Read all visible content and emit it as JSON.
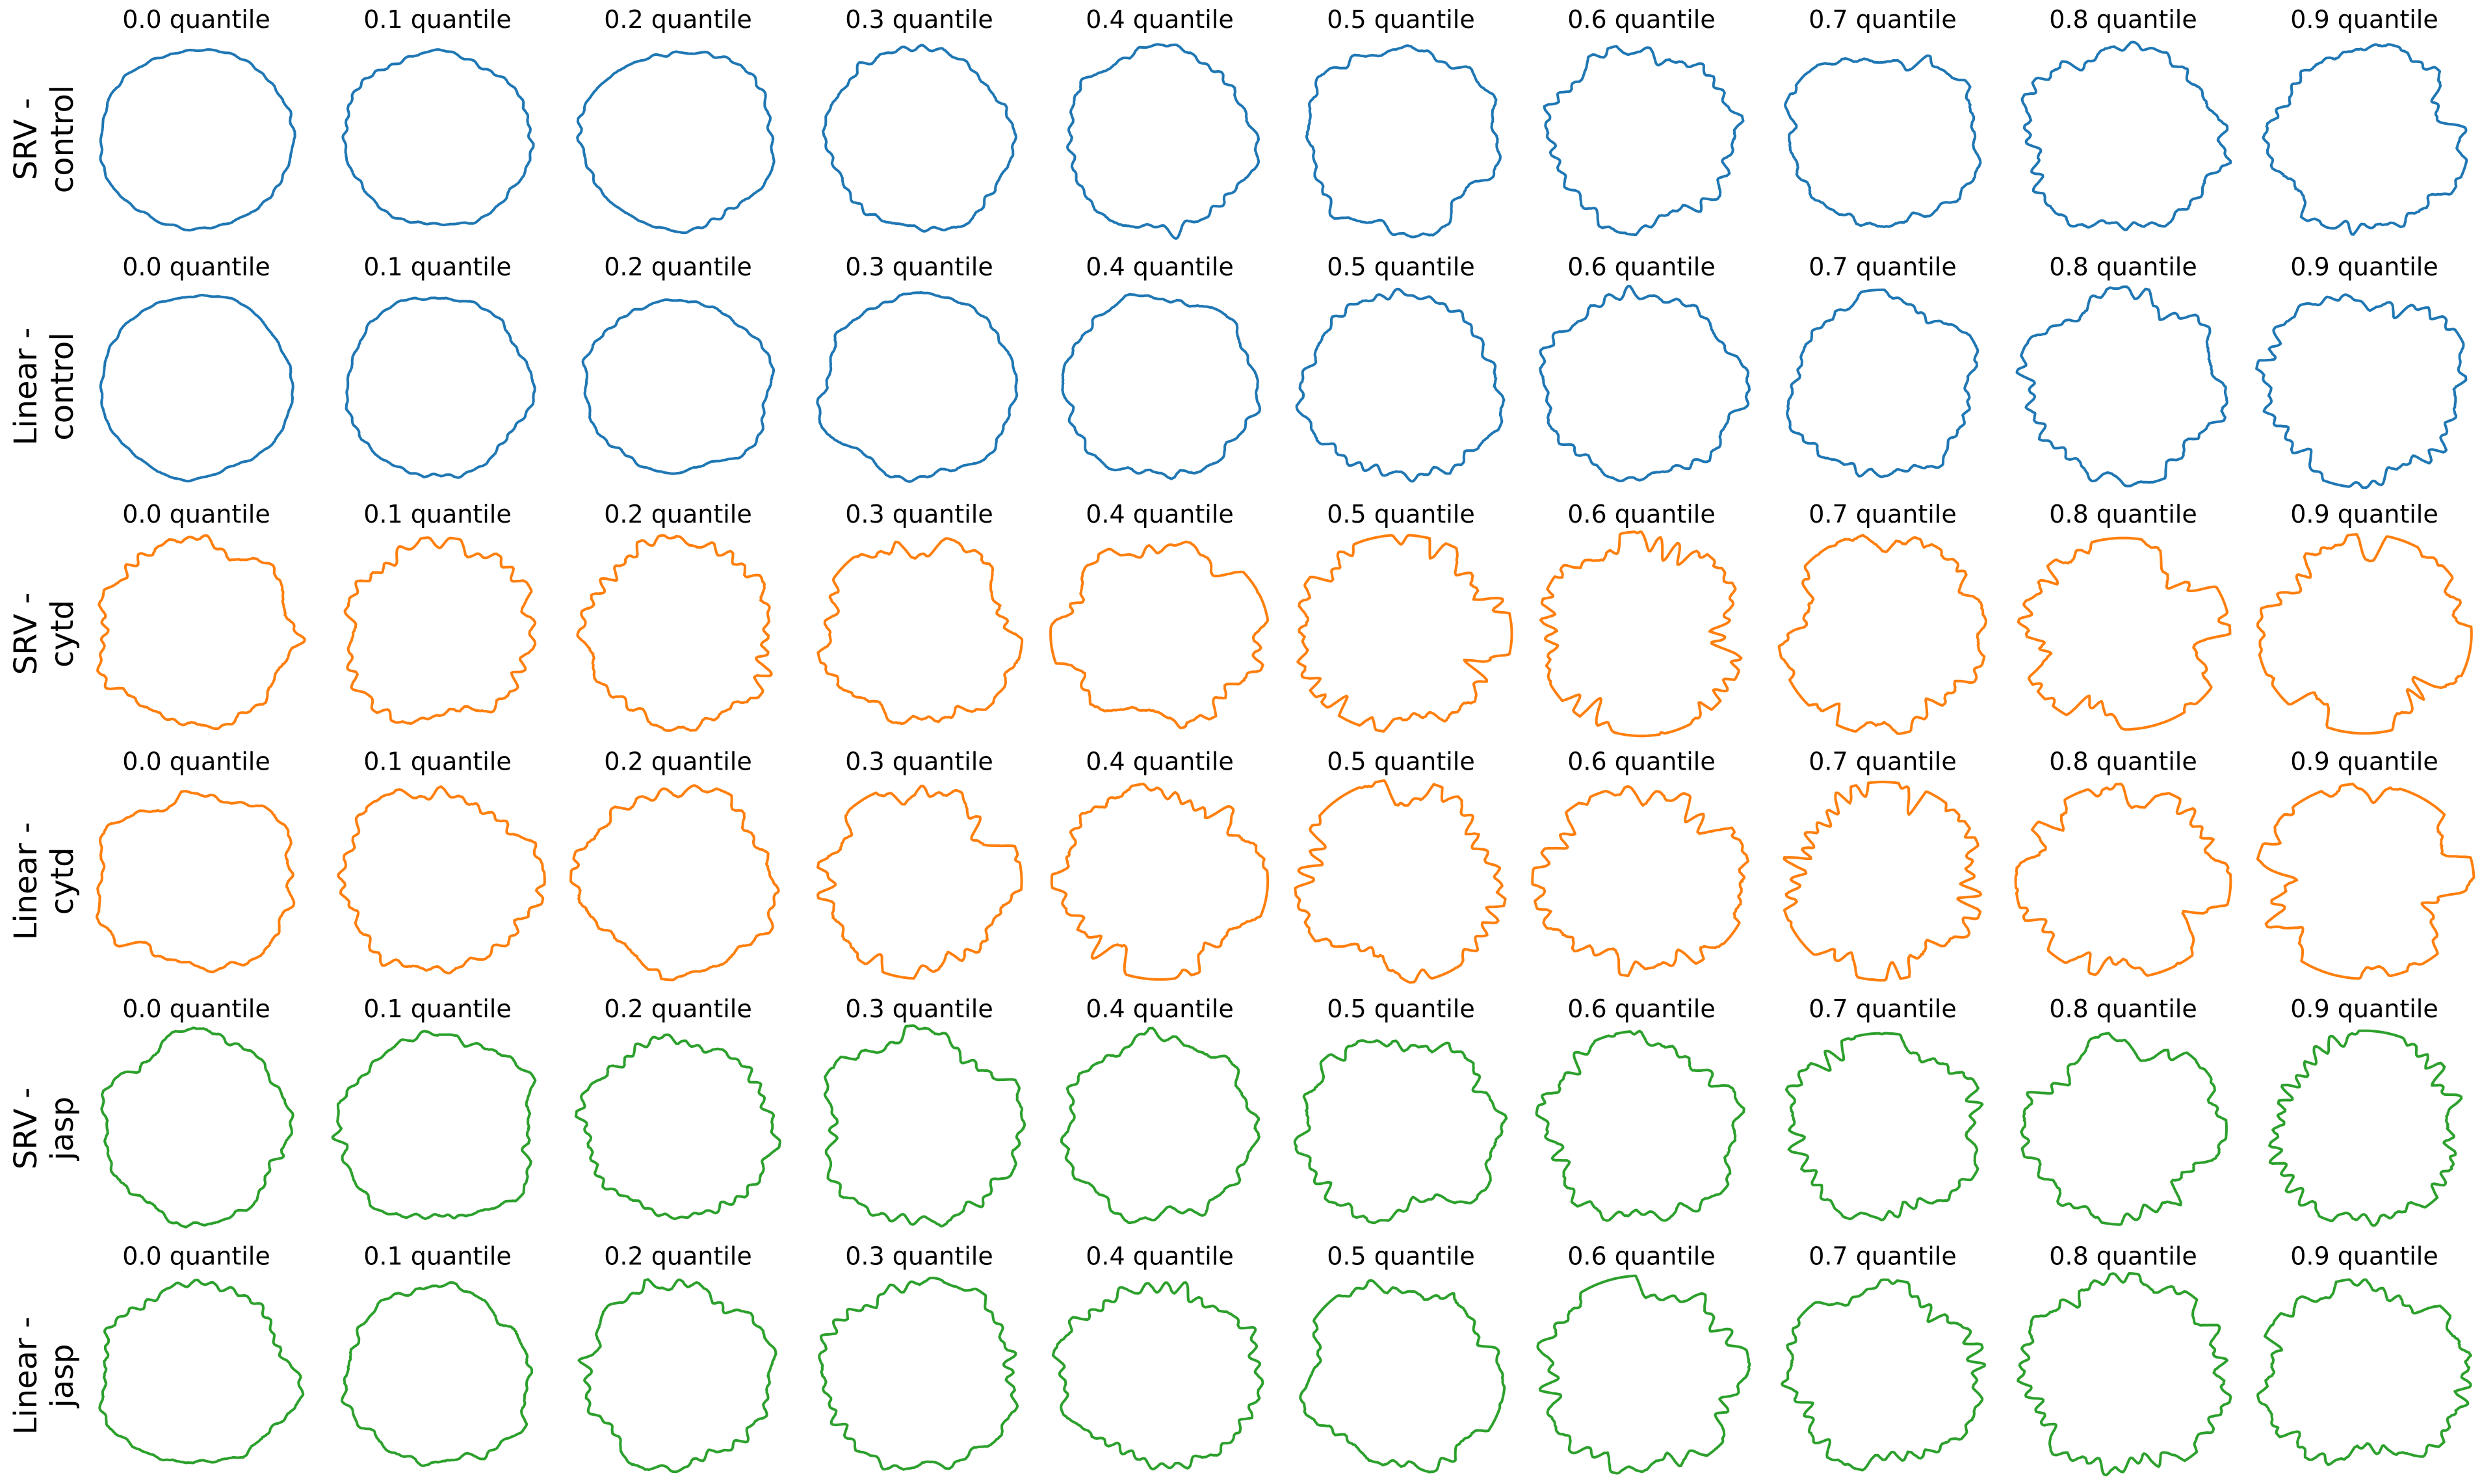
{
  "figure": {
    "columns": [
      "0.0 quantile",
      "0.1 quantile",
      "0.2 quantile",
      "0.3 quantile",
      "0.4 quantile",
      "0.5 quantile",
      "0.6 quantile",
      "0.7 quantile",
      "0.8 quantile",
      "0.9 quantile"
    ],
    "rows": [
      {
        "label_line1": "SRV -",
        "label_line2": "control",
        "color": "#1f77b4"
      },
      {
        "label_line1": "Linear -",
        "label_line2": "control",
        "color": "#1f77b4"
      },
      {
        "label_line1": "SRV -",
        "label_line2": "cytd",
        "color": "#ff7f0e"
      },
      {
        "label_line1": "Linear -",
        "label_line2": "cytd",
        "color": "#ff7f0e"
      },
      {
        "label_line1": "SRV -",
        "label_line2": "jasp",
        "color": "#2ca02c"
      },
      {
        "label_line1": "Linear -",
        "label_line2": "jasp",
        "color": "#2ca02c"
      }
    ]
  }
}
